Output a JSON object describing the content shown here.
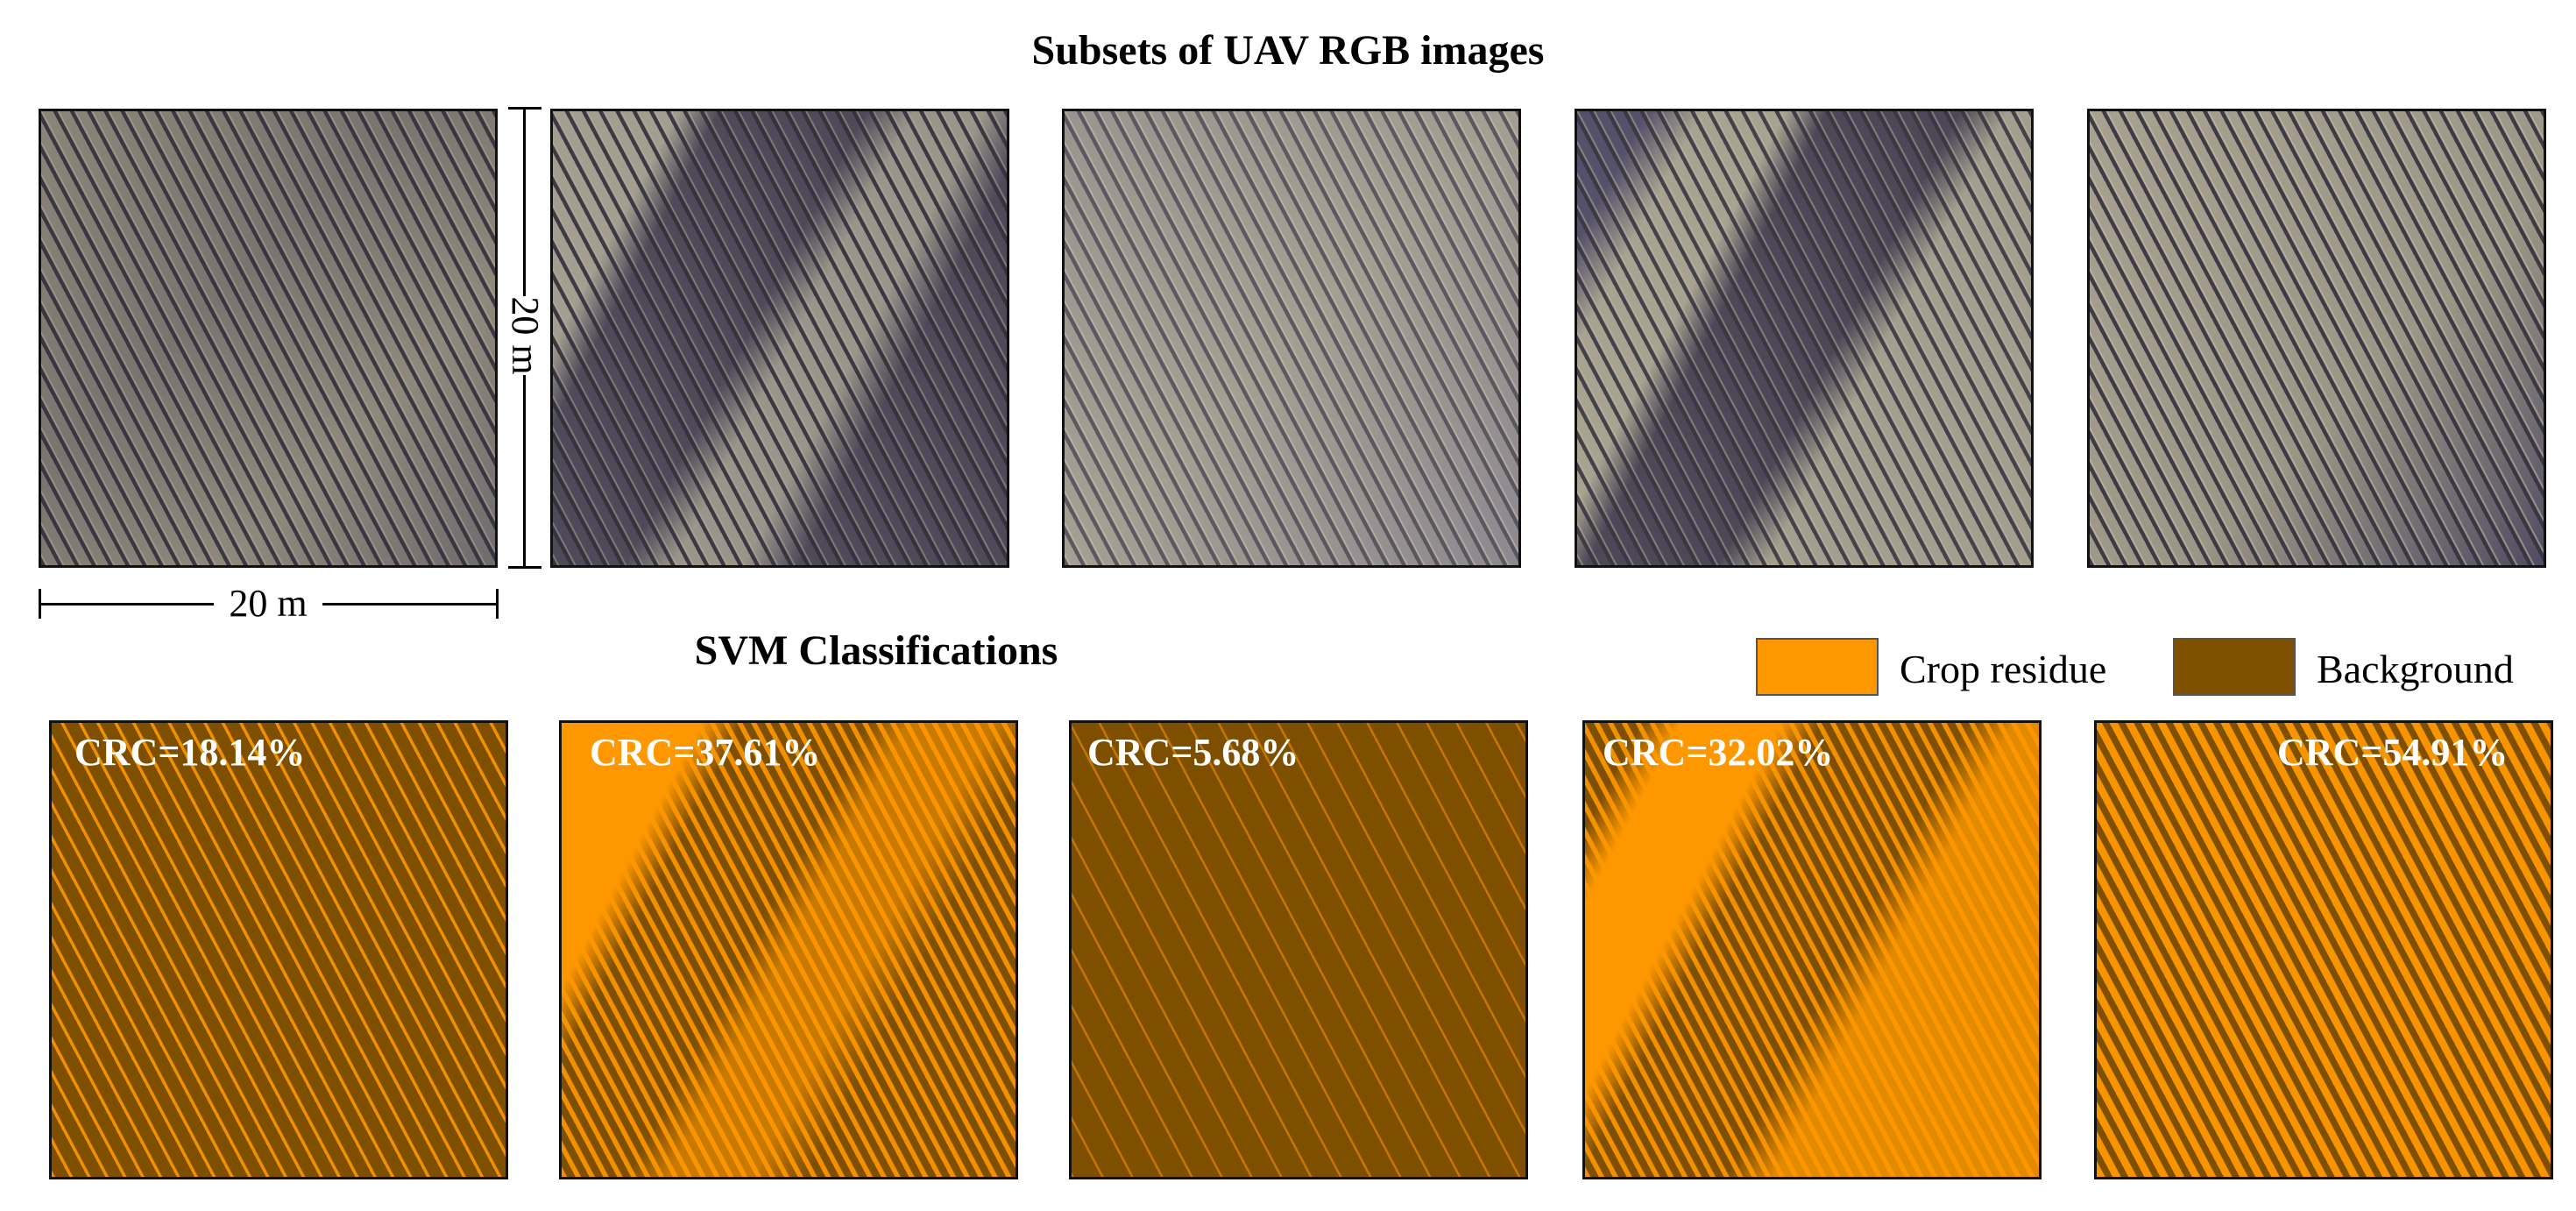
{
  "titles": {
    "top": "Subsets of UAV RGB images",
    "bottom": "SVM Classifications"
  },
  "scale_bar": {
    "horizontal_label": "20 m",
    "vertical_label": "20 m"
  },
  "legend": {
    "items": [
      {
        "label": "Crop residue",
        "color": "#ff9800"
      },
      {
        "label": "Background",
        "color": "#7f4f00"
      }
    ]
  },
  "rgb_images": [
    {
      "name": "rgb-subset-1"
    },
    {
      "name": "rgb-subset-2"
    },
    {
      "name": "rgb-subset-3"
    },
    {
      "name": "rgb-subset-4"
    },
    {
      "name": "rgb-subset-5"
    }
  ],
  "classifications": [
    {
      "label": "CRC=18.14%",
      "crc_percent": 18.14
    },
    {
      "label": "CRC=37.61%",
      "crc_percent": 37.61
    },
    {
      "label": "CRC=5.68%",
      "crc_percent": 5.68
    },
    {
      "label": "CRC=32.02%",
      "crc_percent": 32.02
    },
    {
      "label": "CRC=54.91%",
      "crc_percent": 54.91
    }
  ]
}
